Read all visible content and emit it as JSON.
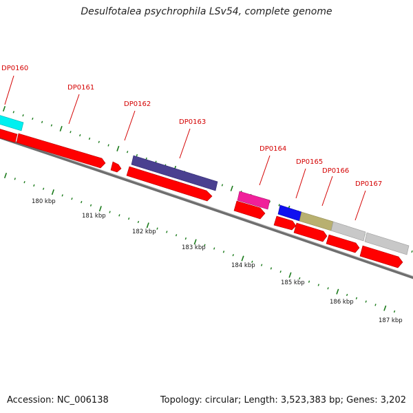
{
  "title": "Desulfotalea psychrophila LSv54, complete genome",
  "footer": {
    "accession": "Accession: NC_006138",
    "summary": "Topology: circular; Length: 3,523,383 bp; Genes: 3,202"
  },
  "colors": {
    "cds": "#ff0000",
    "backbone": "#808080",
    "ticks": "#1a7a1a",
    "label": "#d40000"
  },
  "gene_labels": [
    "DP0160",
    "DP0161",
    "DP0162",
    "DP0163",
    "DP0164",
    "DP0165",
    "DP0166",
    "DP0167"
  ],
  "scale_labels": [
    "180 kbp",
    "181 kbp",
    "182 kbp",
    "183 kbp",
    "184 kbp",
    "185 kbp",
    "186 kbp",
    "187 kbp"
  ]
}
